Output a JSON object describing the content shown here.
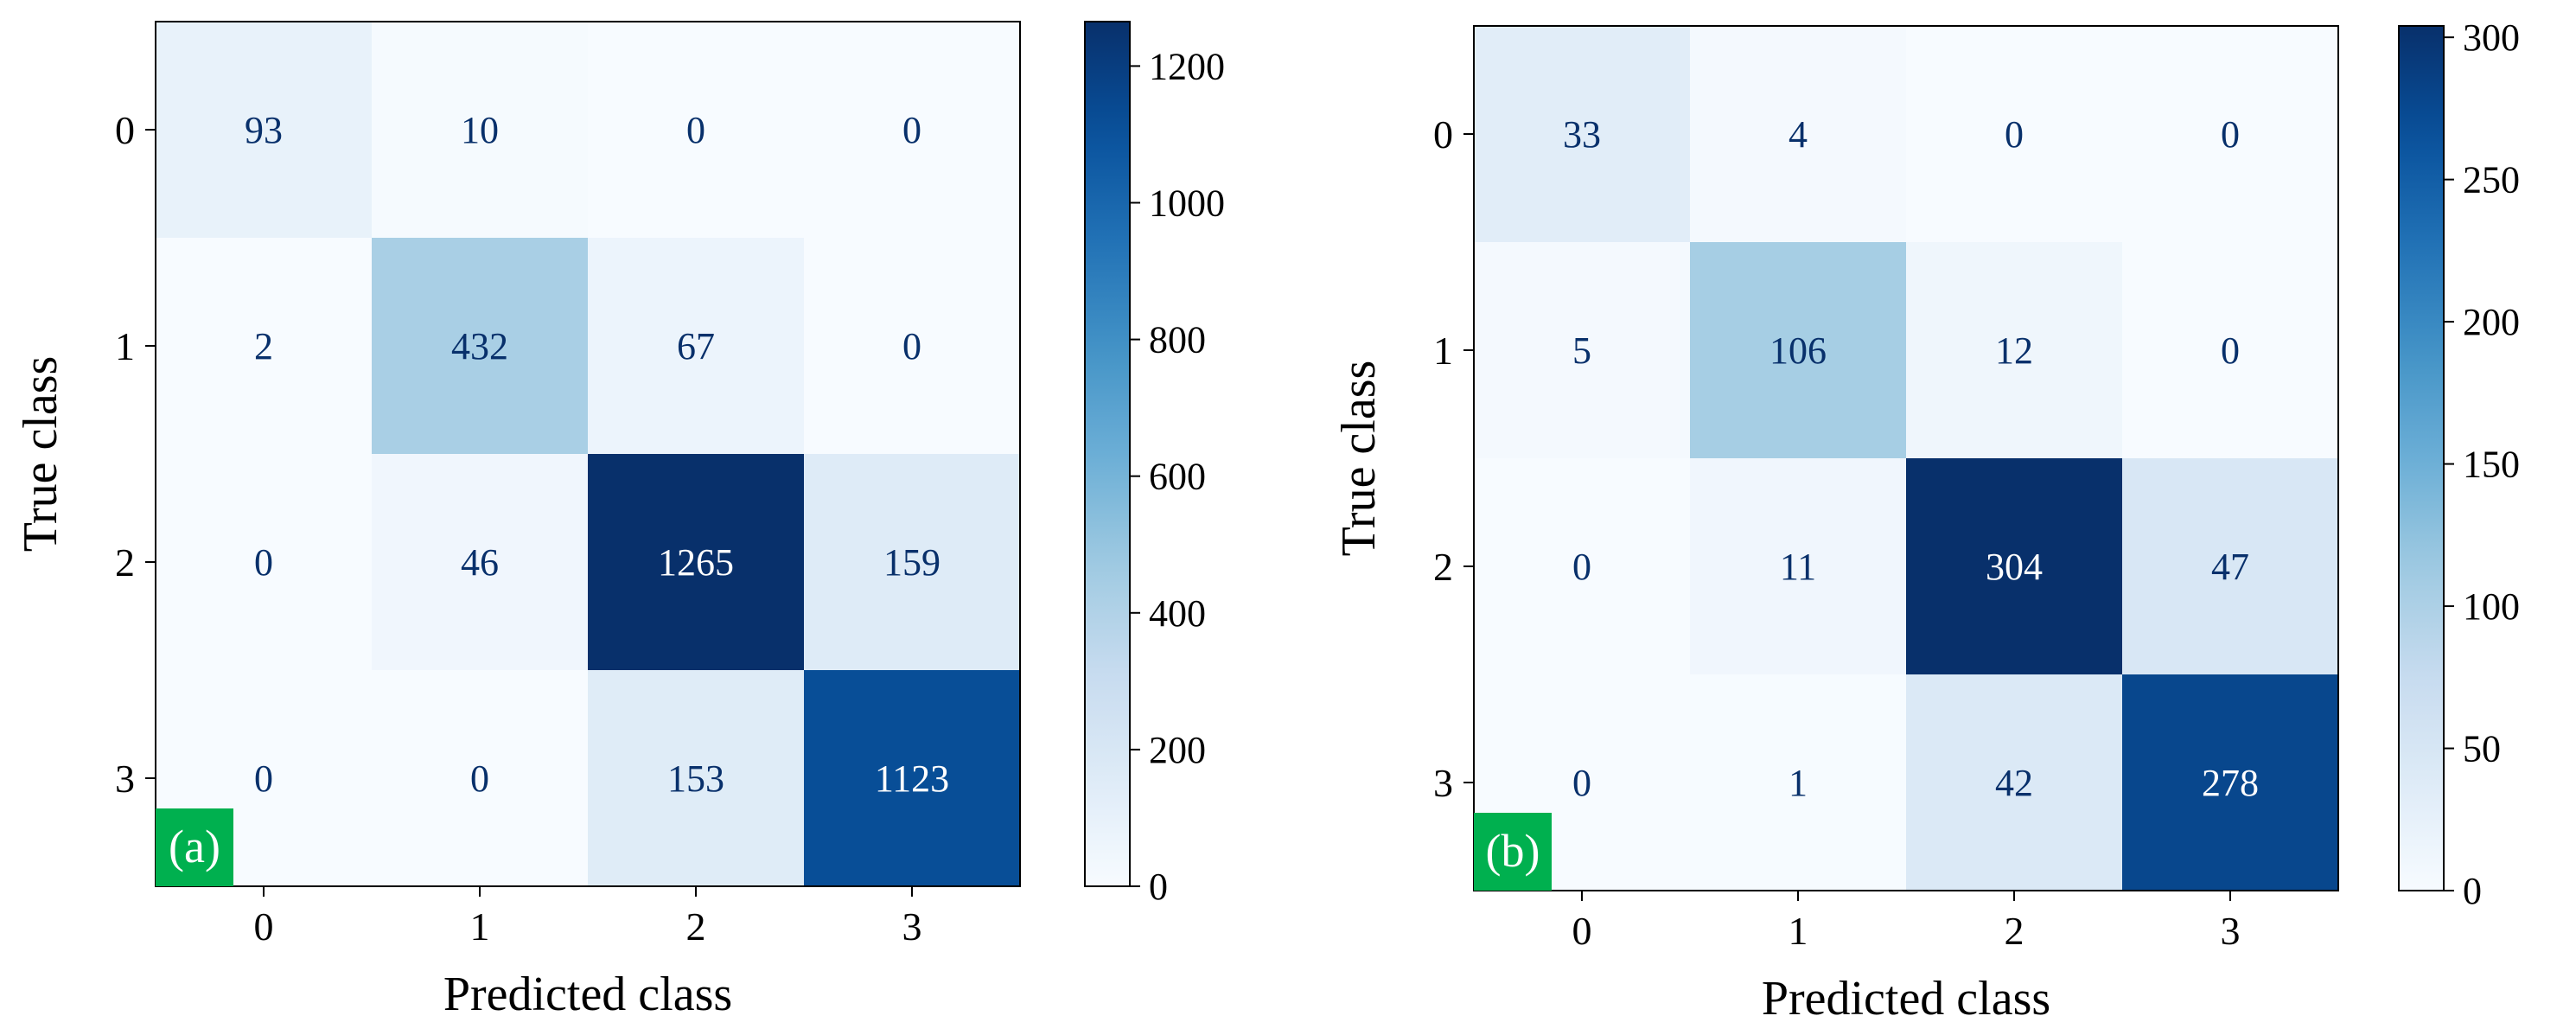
{
  "chart_data": [
    {
      "type": "heatmap",
      "panel_label": "(a)",
      "xlabel": "Predicted class",
      "ylabel": "True class",
      "x_categories": [
        "0",
        "1",
        "2",
        "3"
      ],
      "y_categories": [
        "0",
        "1",
        "2",
        "3"
      ],
      "matrix": [
        [
          93,
          10,
          0,
          0
        ],
        [
          2,
          432,
          67,
          0
        ],
        [
          0,
          46,
          1265,
          159
        ],
        [
          0,
          0,
          153,
          1123
        ]
      ],
      "colormap": "Blues",
      "colorbar": {
        "min": 0,
        "max": 1265,
        "ticks": [
          0,
          200,
          400,
          600,
          800,
          1000,
          1200
        ]
      },
      "colors": {
        "panel_label_bg": "#00b04f",
        "low_text": "#08306b",
        "high_text": "#ffffff"
      }
    },
    {
      "type": "heatmap",
      "panel_label": "(b)",
      "xlabel": "Predicted class",
      "ylabel": "True class",
      "x_categories": [
        "0",
        "1",
        "2",
        "3"
      ],
      "y_categories": [
        "0",
        "1",
        "2",
        "3"
      ],
      "matrix": [
        [
          33,
          4,
          0,
          0
        ],
        [
          5,
          106,
          12,
          0
        ],
        [
          0,
          11,
          304,
          47
        ],
        [
          0,
          1,
          42,
          278
        ]
      ],
      "colormap": "Blues",
      "colorbar": {
        "min": 0,
        "max": 304,
        "ticks": [
          0,
          50,
          100,
          150,
          200,
          250,
          300
        ]
      },
      "colors": {
        "panel_label_bg": "#00b04f",
        "low_text": "#08306b",
        "high_text": "#ffffff"
      }
    }
  ]
}
